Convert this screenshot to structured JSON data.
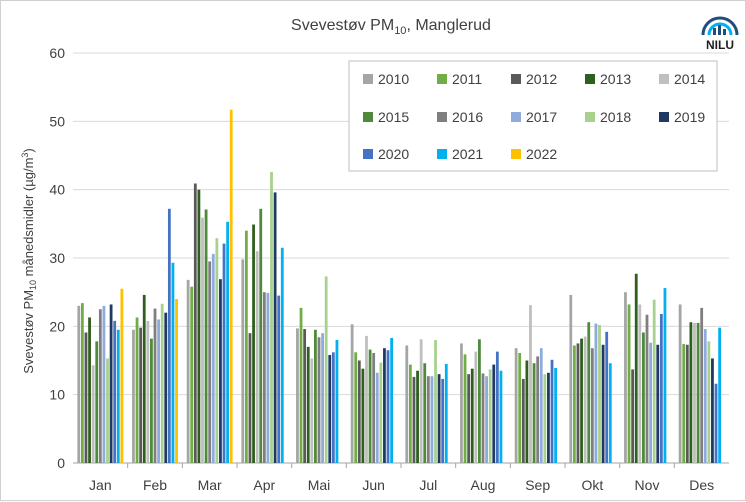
{
  "chart_data": {
    "type": "bar",
    "title_prefix": "Svevestøv PM",
    "title_sub": "10",
    "title_suffix": ", Manglerud",
    "ylabel_prefix": "Svevestøv PM",
    "ylabel_sub": "10",
    "ylabel_suffix": " månedsmidler (µg/m",
    "ylabel_sup": "3",
    "ylabel_end": ")",
    "xlabel": "",
    "ylim": [
      0,
      60
    ],
    "yticks": [
      0,
      10,
      20,
      30,
      40,
      50,
      60
    ],
    "grid": true,
    "legend_position": "top-right",
    "logo_text": "NILU",
    "categories": [
      "Jan",
      "Feb",
      "Mar",
      "Apr",
      "Mai",
      "Jun",
      "Jul",
      "Aug",
      "Sep",
      "Okt",
      "Nov",
      "Des"
    ],
    "series": [
      {
        "name": "2010",
        "color": "#a5a5a5",
        "values": [
          23.0,
          19.5,
          26.8,
          29.8,
          19.7,
          20.3,
          17.2,
          17.5,
          16.8,
          24.6,
          25.0,
          23.2
        ]
      },
      {
        "name": "2011",
        "color": "#70ad47",
        "values": [
          23.4,
          21.3,
          25.8,
          34.0,
          22.7,
          16.2,
          14.4,
          15.9,
          16.1,
          17.2,
          23.2,
          17.4
        ]
      },
      {
        "name": "2012",
        "color": "#595959",
        "values": [
          19.1,
          19.8,
          40.9,
          19.0,
          19.6,
          15.0,
          12.6,
          13.0,
          12.3,
          17.5,
          13.7,
          17.3
        ]
      },
      {
        "name": "2013",
        "color": "#2f5f1f",
        "values": [
          21.3,
          24.6,
          40.0,
          34.9,
          17.0,
          13.8,
          13.5,
          13.8,
          15.0,
          18.2,
          27.7,
          20.6
        ]
      },
      {
        "name": "2014",
        "color": "#bfbfbf",
        "values": [
          14.3,
          20.8,
          35.9,
          31.0,
          15.3,
          18.6,
          18.1,
          16.3,
          23.1,
          18.5,
          23.2,
          20.5
        ]
      },
      {
        "name": "2015",
        "color": "#4e8a3a",
        "values": [
          17.8,
          18.2,
          37.1,
          37.2,
          19.5,
          16.6,
          14.6,
          18.1,
          14.6,
          20.6,
          19.1,
          20.5
        ]
      },
      {
        "name": "2016",
        "color": "#7f7f7f",
        "values": [
          22.5,
          22.6,
          29.5,
          25.0,
          18.4,
          16.1,
          12.7,
          13.1,
          15.6,
          16.8,
          21.7,
          22.7
        ]
      },
      {
        "name": "2017",
        "color": "#8faadc",
        "values": [
          23.0,
          21.0,
          30.6,
          24.9,
          19.0,
          13.2,
          12.7,
          12.7,
          16.8,
          20.4,
          17.6,
          19.6
        ]
      },
      {
        "name": "2018",
        "color": "#a9d18e",
        "values": [
          15.3,
          23.3,
          32.9,
          42.6,
          27.3,
          14.7,
          18.0,
          13.7,
          13.0,
          20.2,
          23.9,
          17.8
        ]
      },
      {
        "name": "2019",
        "color": "#1f3864",
        "values": [
          23.2,
          22.0,
          26.9,
          39.6,
          15.8,
          16.8,
          13.0,
          14.4,
          13.2,
          17.3,
          17.3,
          15.3
        ]
      },
      {
        "name": "2020",
        "color": "#4472c4",
        "values": [
          20.8,
          37.2,
          32.1,
          24.5,
          16.2,
          16.5,
          12.3,
          16.3,
          15.1,
          19.2,
          21.8,
          11.6
        ]
      },
      {
        "name": "2021",
        "color": "#00b0f0",
        "values": [
          19.5,
          29.3,
          35.3,
          31.5,
          18.0,
          18.3,
          14.5,
          13.5,
          13.9,
          14.6,
          25.6,
          19.8
        ]
      },
      {
        "name": "2022",
        "color": "#ffc000",
        "values": [
          25.5,
          24.0,
          51.7,
          null,
          null,
          null,
          null,
          null,
          null,
          null,
          null,
          null
        ]
      }
    ]
  }
}
